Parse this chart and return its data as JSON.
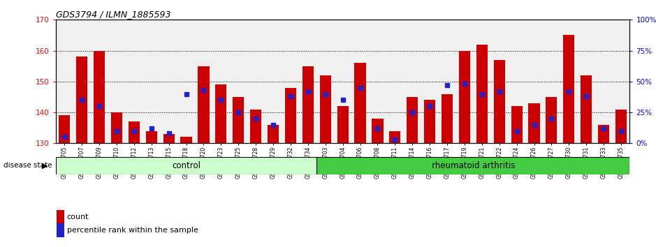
{
  "title": "GDS3794 / ILMN_1885593",
  "samples": [
    "GSM389705",
    "GSM389707",
    "GSM389709",
    "GSM389710",
    "GSM389712",
    "GSM389713",
    "GSM389715",
    "GSM389718",
    "GSM389720",
    "GSM389723",
    "GSM389725",
    "GSM389728",
    "GSM389729",
    "GSM389732",
    "GSM389734",
    "GSM389703",
    "GSM389704",
    "GSM389706",
    "GSM389708",
    "GSM389711",
    "GSM389714",
    "GSM389716",
    "GSM389717",
    "GSM389719",
    "GSM389721",
    "GSM389722",
    "GSM389724",
    "GSM389726",
    "GSM389727",
    "GSM389730",
    "GSM389731",
    "GSM389733",
    "GSM389735"
  ],
  "counts": [
    139,
    158,
    160,
    140,
    137,
    134,
    133,
    132,
    155,
    149,
    145,
    141,
    136,
    148,
    155,
    152,
    142,
    156,
    138,
    134,
    145,
    144,
    146,
    160,
    162,
    157,
    142,
    143,
    145,
    165,
    152,
    136,
    141
  ],
  "percentile_ranks": [
    5,
    35,
    30,
    10,
    10,
    12,
    8,
    40,
    43,
    35,
    25,
    20,
    15,
    38,
    42,
    40,
    35,
    45,
    12,
    3,
    25,
    30,
    47,
    48,
    40,
    42,
    10,
    15,
    20,
    42,
    38,
    12,
    10
  ],
  "n_control": 15,
  "n_rheumatoid": 18,
  "ylim_left": [
    130,
    170
  ],
  "ylim_right": [
    0,
    100
  ],
  "yticks_left": [
    130,
    140,
    150,
    160,
    170
  ],
  "yticks_right": [
    0,
    25,
    50,
    75,
    100
  ],
  "bar_color": "#cc0000",
  "percentile_color": "#2222cc",
  "control_bg": "#ccffcc",
  "rheumatoid_bg": "#44cc44",
  "bar_width": 0.65,
  "plot_bg": "#f0f0f0"
}
